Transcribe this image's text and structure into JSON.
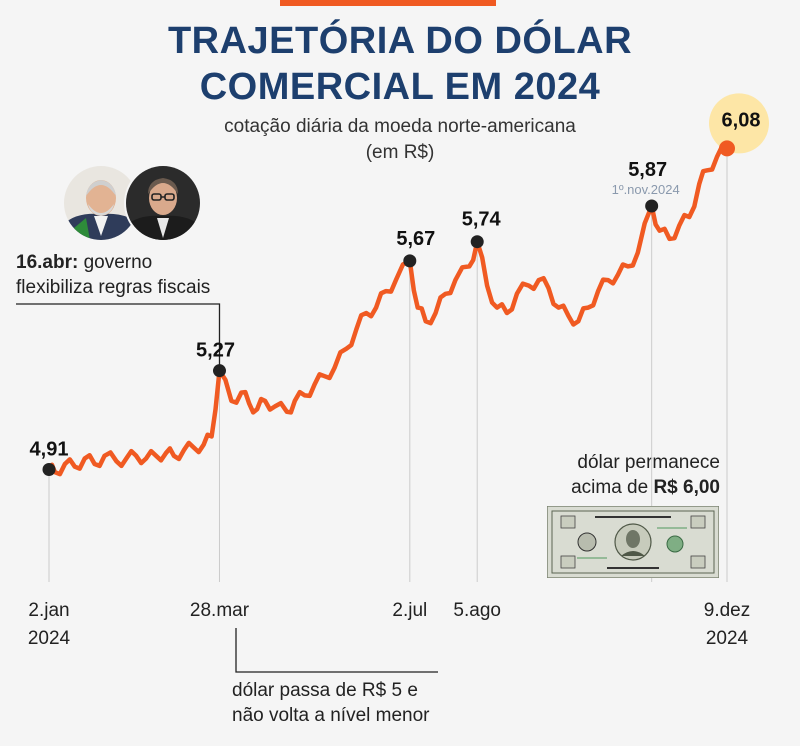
{
  "header": {
    "title_line1": "TRAJETÓRIA DO DÓLAR",
    "title_line2": "COMERCIAL EM 2024",
    "subtitle_line1": "cotação diária da moeda norte-americana",
    "subtitle_line2": "(em R$)"
  },
  "annotations": {
    "apr16_date": "16.abr:",
    "apr16_text1": " governo",
    "apr16_text2": "flexibiliza regras fiscais",
    "mar28_text1": "dólar passa de R$ 5 e",
    "mar28_text2": "não volta a nível menor",
    "above6_text1": "dólar permanece",
    "above6_text2": "acima de ",
    "above6_bold": "R$ 6,00"
  },
  "colors": {
    "line": "#f05a22",
    "title": "#1d3f6e",
    "point": "#222222",
    "highlight": "#fde6a6",
    "value_highlight": "#f05a22",
    "secondary": "#8a99ad"
  },
  "chart_data": {
    "type": "line",
    "series": [
      {
        "x": [
          "2024-01-02",
          "2024-01-05",
          "2024-01-10",
          "2024-01-15",
          "2024-01-20",
          "2024-01-25",
          "2024-01-30",
          "2024-02-05",
          "2024-02-10",
          "2024-02-15",
          "2024-02-20",
          "2024-02-25",
          "2024-03-01",
          "2024-03-05",
          "2024-03-10",
          "2024-03-15",
          "2024-03-20",
          "2024-03-24",
          "2024-03-28",
          "2024-04-03",
          "2024-04-08",
          "2024-04-12",
          "2024-04-16",
          "2024-04-20",
          "2024-04-25",
          "2024-05-01",
          "2024-05-05",
          "2024-05-10",
          "2024-05-15",
          "2024-05-20",
          "2024-05-25",
          "2024-05-31",
          "2024-06-05",
          "2024-06-10",
          "2024-06-15",
          "2024-06-20",
          "2024-06-25",
          "2024-07-02",
          "2024-07-06",
          "2024-07-10",
          "2024-07-15",
          "2024-07-20",
          "2024-07-25",
          "2024-08-01",
          "2024-08-05",
          "2024-08-10",
          "2024-08-15",
          "2024-08-20",
          "2024-08-25",
          "2024-08-31",
          "2024-09-05",
          "2024-09-10",
          "2024-09-15",
          "2024-09-20",
          "2024-09-25",
          "2024-09-30",
          "2024-10-05",
          "2024-10-10",
          "2024-10-15",
          "2024-10-20",
          "2024-10-25",
          "2024-11-01",
          "2024-11-05",
          "2024-11-10",
          "2024-11-15",
          "2024-11-20",
          "2024-11-25",
          "2024-11-29",
          "2024-12-04",
          "2024-12-09"
        ],
        "y": [
          4.91,
          4.9,
          4.93,
          4.92,
          4.95,
          4.93,
          4.96,
          4.94,
          4.95,
          4.96,
          4.95,
          4.96,
          4.97,
          4.96,
          4.98,
          4.99,
          5.0,
          5.03,
          5.27,
          5.16,
          5.19,
          5.15,
          5.13,
          5.16,
          5.14,
          5.12,
          5.16,
          5.18,
          5.22,
          5.25,
          5.28,
          5.35,
          5.42,
          5.48,
          5.5,
          5.56,
          5.6,
          5.67,
          5.5,
          5.45,
          5.48,
          5.55,
          5.6,
          5.65,
          5.74,
          5.58,
          5.5,
          5.48,
          5.55,
          5.58,
          5.6,
          5.57,
          5.5,
          5.47,
          5.45,
          5.5,
          5.56,
          5.6,
          5.62,
          5.65,
          5.7,
          5.87,
          5.78,
          5.75,
          5.8,
          5.83,
          5.95,
          6.0,
          6.05,
          6.08
        ]
      }
    ],
    "labeled_points": [
      {
        "x": "2024-01-02",
        "label": "4,91"
      },
      {
        "x": "2024-03-28",
        "label": "5,27"
      },
      {
        "x": "2024-07-02",
        "label": "5,67"
      },
      {
        "x": "2024-08-05",
        "label": "5,74"
      },
      {
        "x": "2024-11-01",
        "label": "5,87",
        "sublabel": "1º.nov.2024"
      },
      {
        "x": "2024-12-09",
        "label": "6,08"
      }
    ],
    "x_ticks": [
      {
        "x": "2024-01-02",
        "line1": "2.jan",
        "line2": "2024"
      },
      {
        "x": "2024-03-28",
        "line1": "28.mar",
        "line2": ""
      },
      {
        "x": "2024-07-02",
        "line1": "2.jul",
        "line2": ""
      },
      {
        "x": "2024-08-05",
        "line1": "5.ago",
        "line2": ""
      },
      {
        "x": "2024-12-09",
        "line1": "9.dez",
        "line2": "2024"
      }
    ],
    "ylim": [
      4.5,
      6.3
    ],
    "grid": false,
    "legend": "none"
  }
}
